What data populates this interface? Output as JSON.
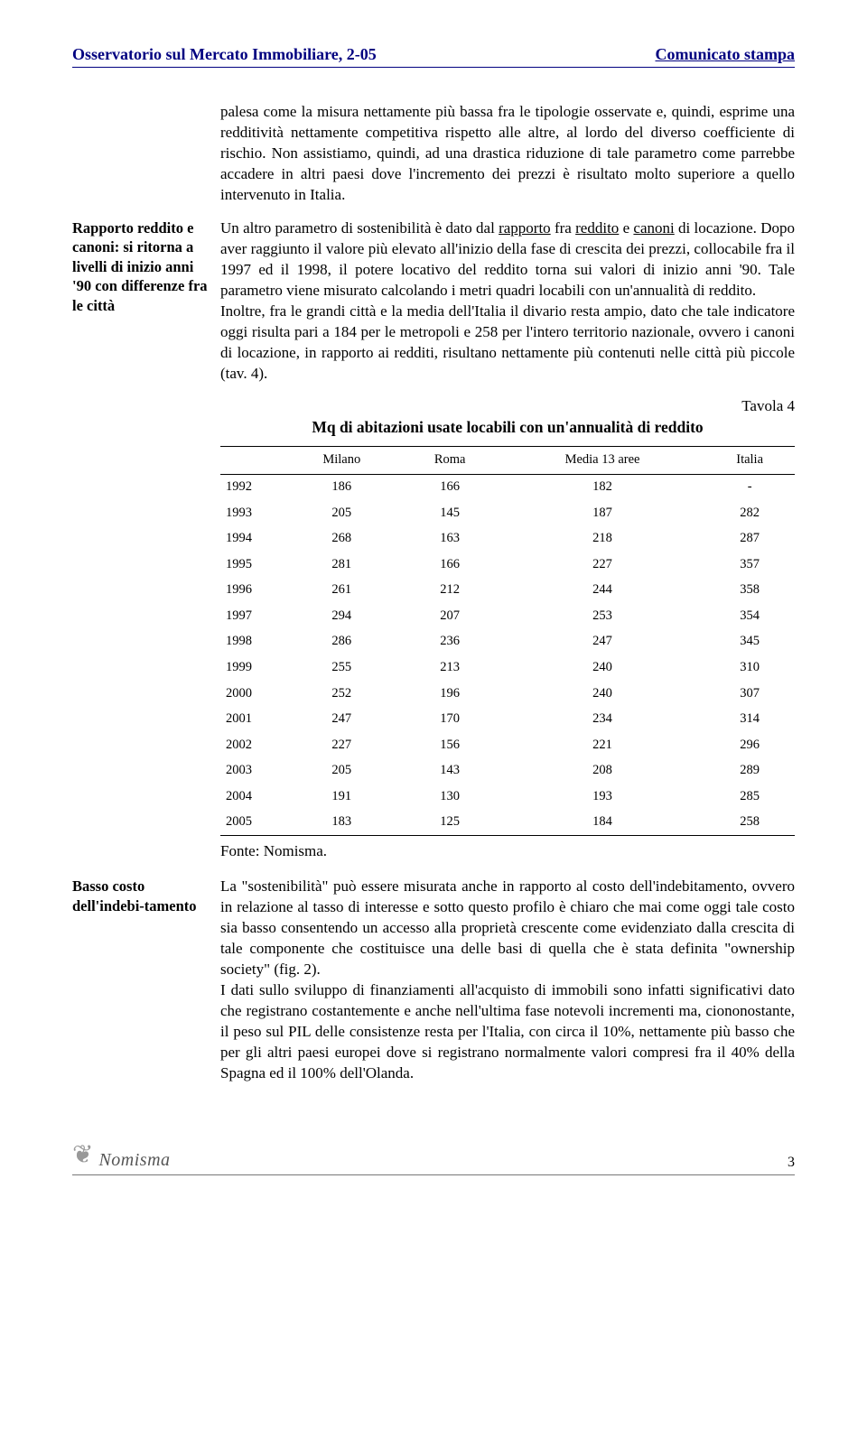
{
  "header": {
    "left": "Osservatorio sul Mercato Immobiliare, 2-05",
    "right": "Comunicato stampa"
  },
  "para1": "palesa come la misura nettamente più bassa fra le tipologie osservate e, quindi, esprime una redditività nettamente competitiva rispetto alle altre, al lordo del diverso coefficiente di rischio. Non assistiamo, quindi, ad una drastica riduzione di tale parametro come parrebbe accadere in altri paesi dove l'incremento dei prezzi è risultato molto superiore a quello intervenuto in Italia.",
  "margin1": "Rapporto reddito e canoni: si ritorna a livelli di inizio anni '90 con differenze fra le città",
  "para2a_pre": "Un altro parametro di sostenibilità è dato dal ",
  "para2a_u1": "rapporto",
  "para2a_mid1": " fra ",
  "para2a_u2": "reddito",
  "para2a_mid2": " e ",
  "para2a_u3": "canoni",
  "para2a_post": " di locazione. Dopo aver raggiunto il valore più elevato all'inizio della fase di crescita dei prezzi, collocabile fra il 1997 ed il 1998, il potere locativo del reddito torna sui valori di inizio anni '90. Tale parametro viene misurato calcolando i metri quadri locabili con un'annualità di reddito.",
  "para2b": "Inoltre, fra le grandi città e la media dell'Italia il divario resta ampio, dato che tale indicatore oggi risulta pari a 184 per le metropoli e 258 per l'intero territorio nazionale, ovvero i canoni di locazione, in rapporto ai redditi, risultano nettamente più contenuti nelle città più piccole (tav. 4).",
  "table": {
    "label": "Tavola 4",
    "title": "Mq di abitazioni usate locabili con un'annualità di reddito",
    "columns": [
      "",
      "Milano",
      "Roma",
      "Media 13 aree",
      "Italia"
    ],
    "rows": [
      [
        "1992",
        "186",
        "166",
        "182",
        "-"
      ],
      [
        "1993",
        "205",
        "145",
        "187",
        "282"
      ],
      [
        "1994",
        "268",
        "163",
        "218",
        "287"
      ],
      [
        "1995",
        "281",
        "166",
        "227",
        "357"
      ],
      [
        "1996",
        "261",
        "212",
        "244",
        "358"
      ],
      [
        "1997",
        "294",
        "207",
        "253",
        "354"
      ],
      [
        "1998",
        "286",
        "236",
        "247",
        "345"
      ],
      [
        "1999",
        "255",
        "213",
        "240",
        "310"
      ],
      [
        "2000",
        "252",
        "196",
        "240",
        "307"
      ],
      [
        "2001",
        "247",
        "170",
        "234",
        "314"
      ],
      [
        "2002",
        "227",
        "156",
        "221",
        "296"
      ],
      [
        "2003",
        "205",
        "143",
        "208",
        "289"
      ],
      [
        "2004",
        "191",
        "130",
        "193",
        "285"
      ],
      [
        "2005",
        "183",
        "125",
        "184",
        "258"
      ]
    ],
    "source": "Fonte: Nomisma."
  },
  "margin2": "Basso costo dell'indebi-tamento",
  "para3a": "La \"sostenibilità\" può essere misurata anche in rapporto al costo dell'indebitamento, ovvero in relazione al tasso di interesse e sotto questo profilo è chiaro che mai come oggi tale costo sia basso consentendo un accesso alla proprietà crescente come evidenziato dalla crescita di tale componente che costituisce una delle basi di quella che è stata definita \"ownership society\" (fig. 2).",
  "para3b": "I dati sullo sviluppo di finanziamenti all'acquisto di immobili sono infatti significativi dato che registrano costantemente e anche nell'ultima fase notevoli incrementi ma, ciononostante, il peso sul PIL delle consistenze resta per l'Italia, con circa il 10%, nettamente più basso che per gli altri paesi europei dove si registrano normalmente valori compresi fra il 40% della Spagna ed il 100% dell'Olanda.",
  "footer": {
    "logo_text": "Nomisma",
    "page": "3"
  }
}
